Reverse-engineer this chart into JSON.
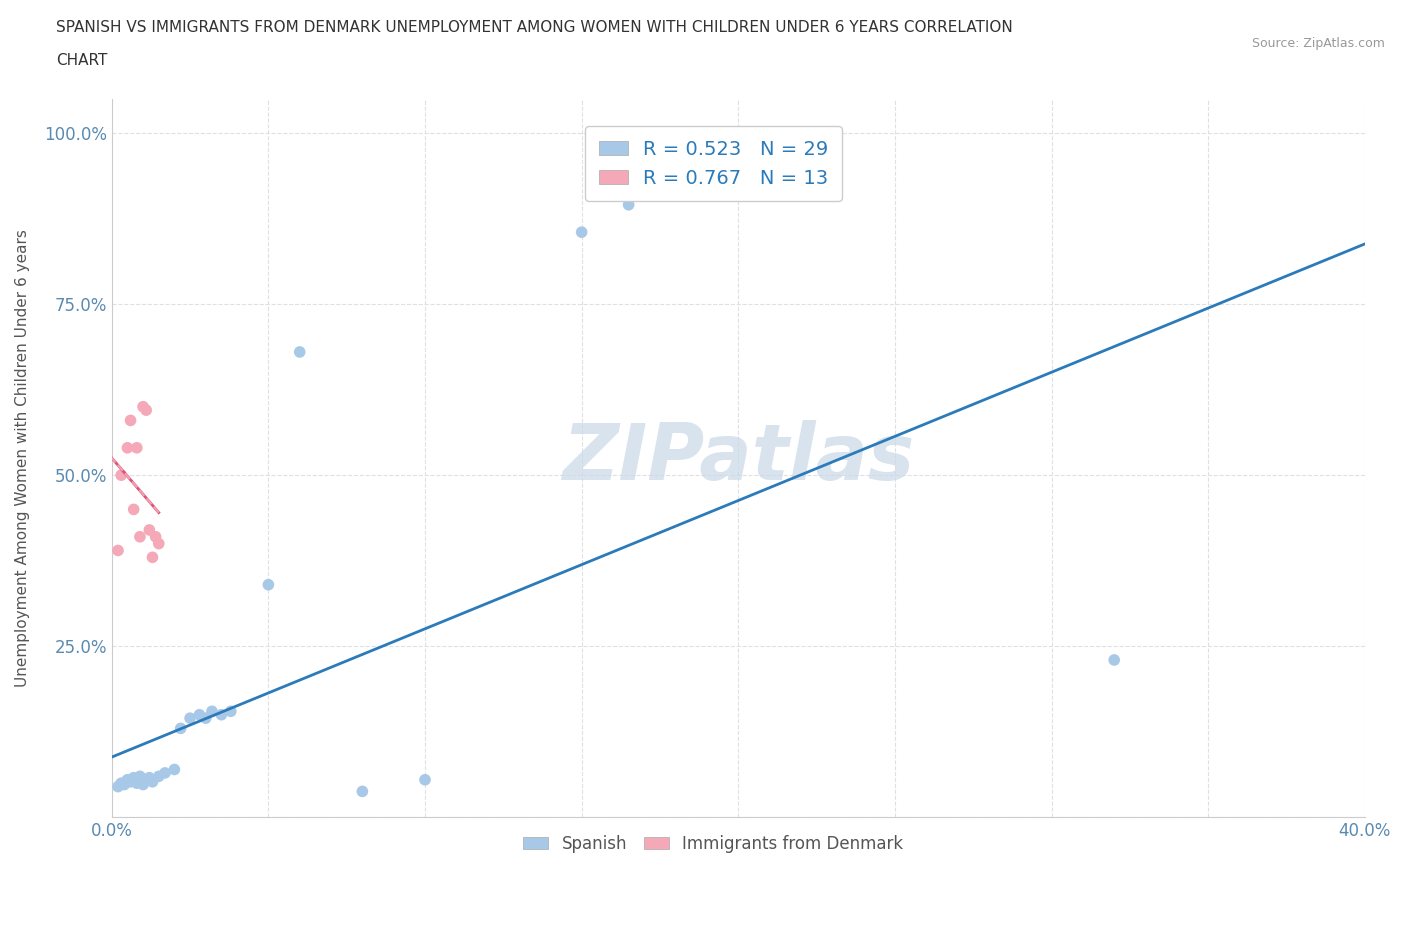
{
  "title_line1": "SPANISH VS IMMIGRANTS FROM DENMARK UNEMPLOYMENT AMONG WOMEN WITH CHILDREN UNDER 6 YEARS CORRELATION",
  "title_line2": "CHART",
  "source": "Source: ZipAtlas.com",
  "ylabel": "Unemployment Among Women with Children Under 6 years",
  "xlim": [
    0.0,
    0.4
  ],
  "ylim": [
    0.0,
    1.05
  ],
  "xticks": [
    0.0,
    0.05,
    0.1,
    0.15,
    0.2,
    0.25,
    0.3,
    0.35,
    0.4
  ],
  "yticks": [
    0.0,
    0.25,
    0.5,
    0.75,
    1.0
  ],
  "spanish_x": [
    0.002,
    0.003,
    0.004,
    0.005,
    0.006,
    0.007,
    0.008,
    0.009,
    0.01,
    0.011,
    0.012,
    0.013,
    0.015,
    0.017,
    0.02,
    0.022,
    0.025,
    0.028,
    0.03,
    0.032,
    0.035,
    0.038,
    0.05,
    0.06,
    0.08,
    0.1,
    0.15,
    0.165,
    0.32
  ],
  "spanish_y": [
    0.045,
    0.05,
    0.048,
    0.055,
    0.052,
    0.058,
    0.05,
    0.06,
    0.048,
    0.055,
    0.058,
    0.052,
    0.06,
    0.065,
    0.07,
    0.13,
    0.145,
    0.15,
    0.145,
    0.155,
    0.15,
    0.155,
    0.34,
    0.68,
    0.038,
    0.055,
    0.855,
    0.895,
    0.23
  ],
  "denmark_x": [
    0.002,
    0.003,
    0.005,
    0.006,
    0.007,
    0.008,
    0.009,
    0.01,
    0.011,
    0.012,
    0.013,
    0.014,
    0.015
  ],
  "denmark_y": [
    0.39,
    0.5,
    0.54,
    0.58,
    0.45,
    0.54,
    0.41,
    0.6,
    0.595,
    0.42,
    0.38,
    0.41,
    0.4
  ],
  "spanish_color": "#a8c8e8",
  "denmark_color": "#f4a8b8",
  "trend_spanish_color": "#2b7bba",
  "trend_denmark_color": "#e05070",
  "trend_denmark_dashed_color": "#f0a0b8",
  "watermark": "ZIPatlas",
  "watermark_color": "#c8d8e8",
  "legend_R_spanish": "R = 0.523",
  "legend_N_spanish": "N = 29",
  "legend_R_denmark": "R = 0.767",
  "legend_N_denmark": "N = 13",
  "background_color": "#ffffff",
  "grid_color": "#e0e0e0"
}
